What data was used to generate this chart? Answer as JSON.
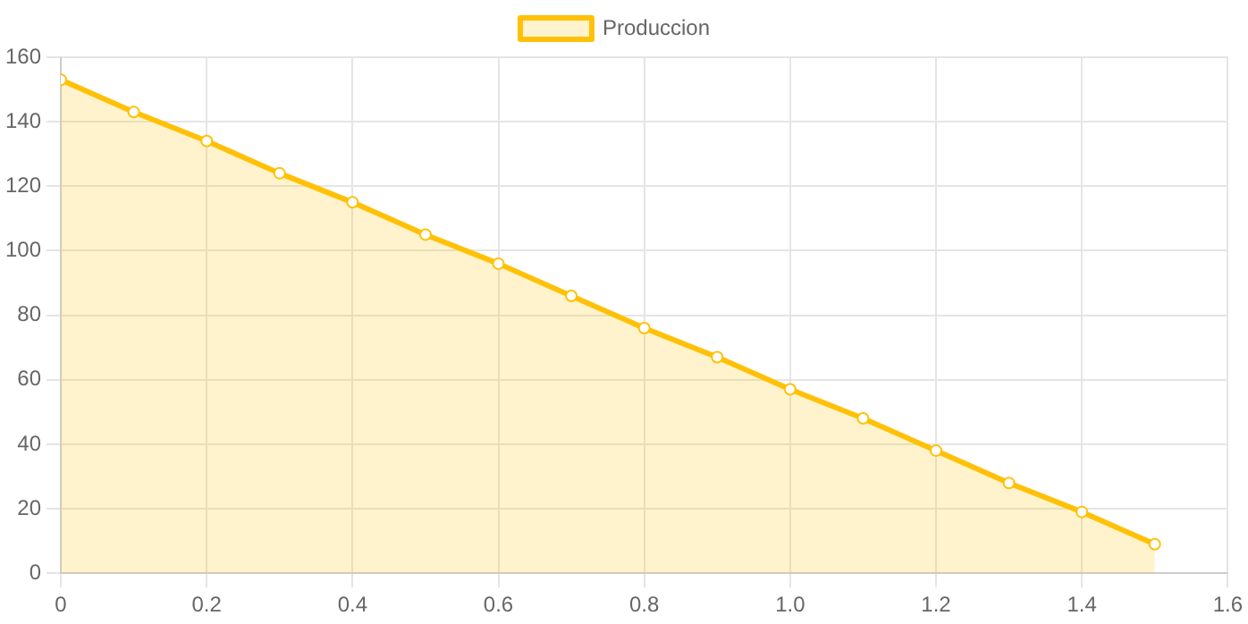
{
  "chart_data": {
    "type": "area",
    "x": [
      0,
      0.1,
      0.2,
      0.3,
      0.4,
      0.5,
      0.6,
      0.7,
      0.8,
      0.9,
      1,
      1.1,
      1.2,
      1.3,
      1.4,
      1.5
    ],
    "series": [
      {
        "name": "Produccion",
        "color": "#ffc107",
        "values": [
          153,
          143,
          134,
          124,
          115,
          105,
          96,
          86,
          76,
          67,
          57,
          48,
          38,
          28,
          19,
          9
        ]
      }
    ],
    "xlim": [
      0,
      1.6
    ],
    "xticks": [
      0,
      0.2,
      0.4,
      0.6,
      0.8,
      {
        "value": 1,
        "label": "1.0"
      },
      1.2,
      1.4,
      1.6
    ],
    "ylim": [
      0,
      160
    ],
    "yticks": [
      0,
      20,
      40,
      60,
      80,
      100,
      120,
      140,
      160
    ],
    "grid": true,
    "legend": "top",
    "marker": "circle",
    "line_style": "solid"
  }
}
